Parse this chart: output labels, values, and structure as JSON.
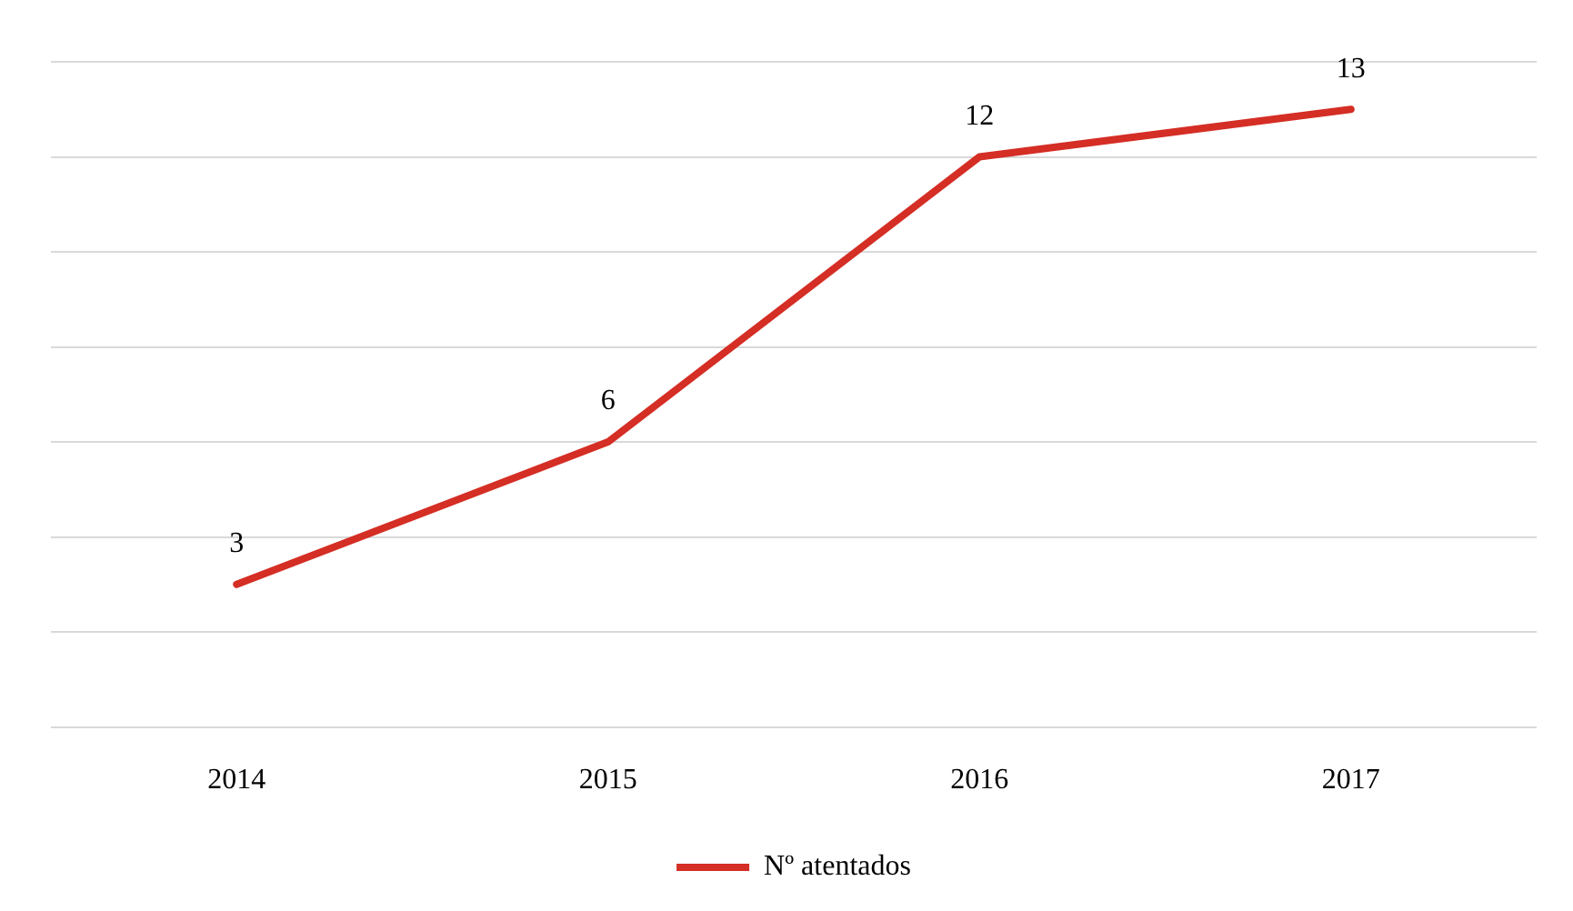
{
  "chart_data": {
    "type": "line",
    "categories": [
      "2014",
      "2015",
      "2016",
      "2017"
    ],
    "series": [
      {
        "name": "Nº atentados",
        "color": "#d42e25",
        "values": [
          3,
          6,
          12,
          13
        ]
      }
    ],
    "ylim": [
      0,
      14
    ],
    "yticks": [
      {
        "value": 0,
        "label": null
      },
      {
        "value": 2,
        "label": null
      },
      {
        "value": 4,
        "label": null
      },
      {
        "value": 6,
        "label": null
      },
      {
        "value": 8,
        "label": null
      },
      {
        "value": 10,
        "label": null
      },
      {
        "value": 12,
        "label": null
      },
      {
        "value": 14,
        "label": null
      }
    ],
    "tick_labels": "x",
    "grid": "y",
    "data_labels": true,
    "legend": "bottom",
    "marker": "none",
    "line_style": "solid"
  }
}
